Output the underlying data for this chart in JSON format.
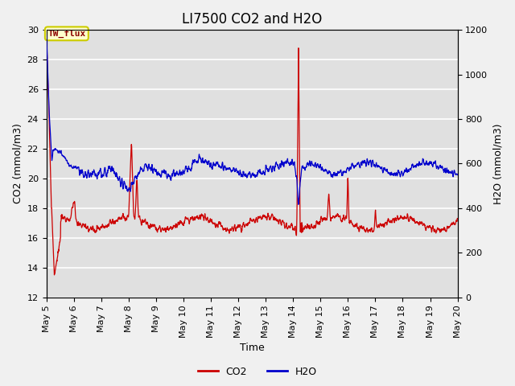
{
  "title": "LI7500 CO2 and H2O",
  "xlabel": "Time",
  "ylabel_left": "CO2 (mmol/m3)",
  "ylabel_right": "H2O (mmol/m3)",
  "ylim_left": [
    12,
    30
  ],
  "ylim_right": [
    0,
    1200
  ],
  "yticks_left": [
    12,
    14,
    16,
    18,
    20,
    22,
    24,
    26,
    28,
    30
  ],
  "yticks_right": [
    0,
    200,
    400,
    600,
    800,
    1000,
    1200
  ],
  "annotation_text": "TW_flux",
  "co2_color": "#cc0000",
  "h2o_color": "#0000cc",
  "axes_bg_color": "#e0e0e0",
  "fig_bg_color": "#f0f0f0",
  "grid_color": "white",
  "legend_co2": "CO2",
  "legend_h2o": "H2O",
  "title_fontsize": 12,
  "axis_label_fontsize": 9,
  "tick_fontsize": 8
}
